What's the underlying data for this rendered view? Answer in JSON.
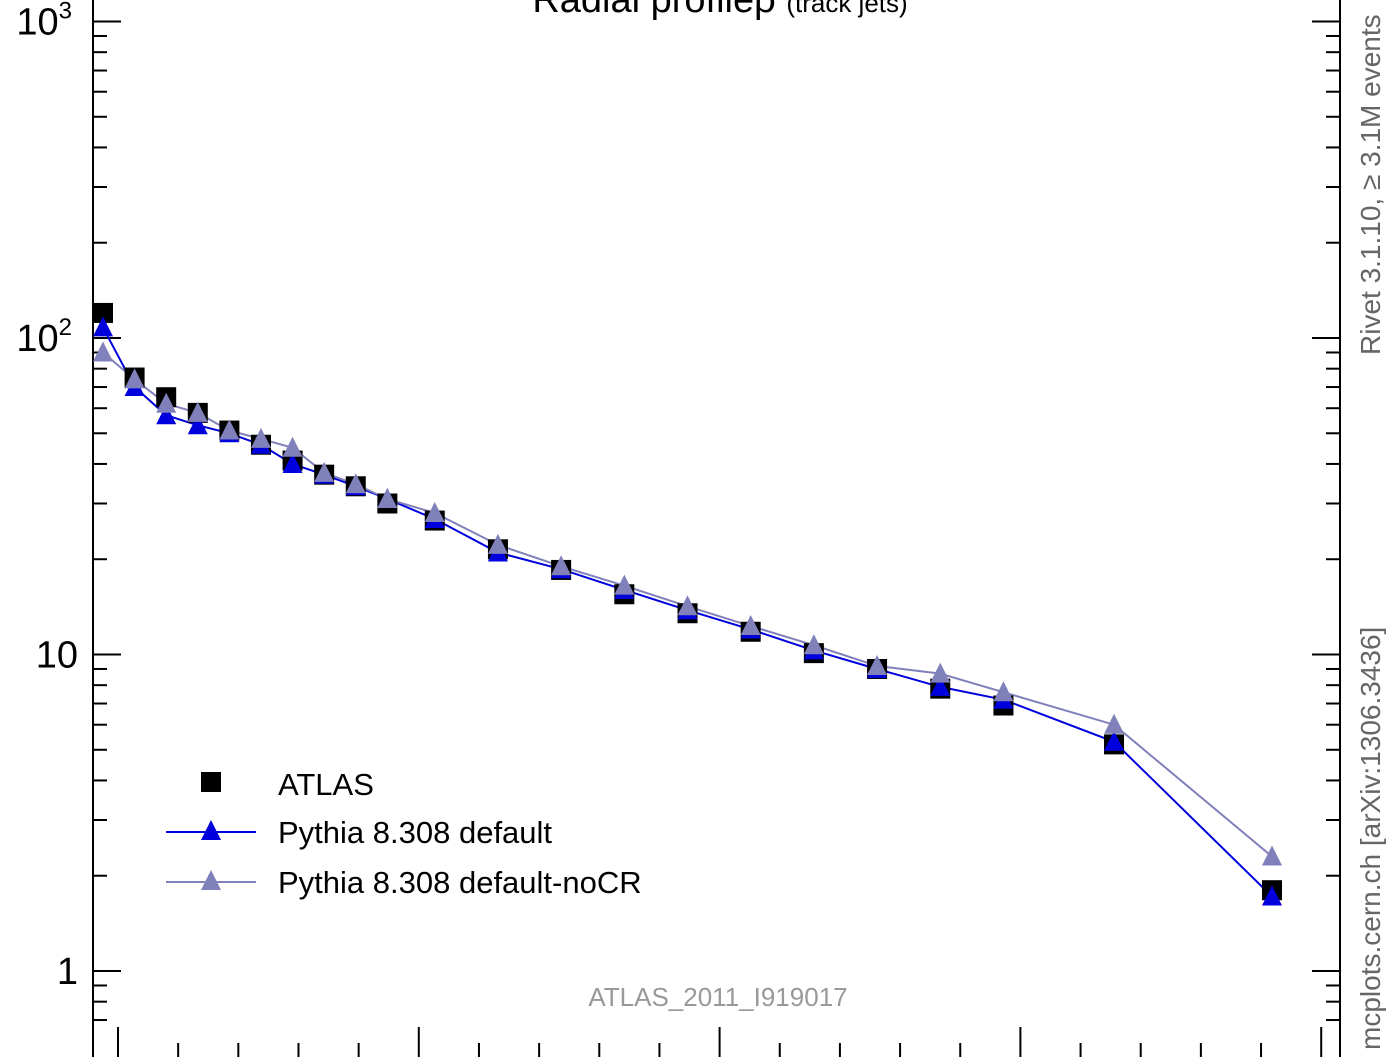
{
  "chart_data": {
    "type": "line",
    "title_main": "Radial profileρ",
    "title_sub": "(track jets)",
    "watermark": "ATLAS_2011_I919017",
    "side_label_top": "Rivet 3.1.10, ≥ 3.1M events",
    "side_label_bottom": "mcplots.cern.ch [arXiv:1306.3436]",
    "yscale": "log",
    "ylim": [
      0.7,
      1000
    ],
    "xlim": [
      0,
      0.6
    ],
    "y_ticks": [
      {
        "value": 1,
        "label": "1"
      },
      {
        "value": 10,
        "label": "10"
      },
      {
        "value": 100,
        "base": "10",
        "exp": "2"
      },
      {
        "value": 1000,
        "base": "10",
        "exp": "3"
      }
    ],
    "x": [
      0.005,
      0.015,
      0.025,
      0.035,
      0.045,
      0.055,
      0.065,
      0.075,
      0.085,
      0.095,
      0.11,
      0.13,
      0.15,
      0.17,
      0.19,
      0.21,
      0.23,
      0.25,
      0.27,
      0.29,
      0.325,
      0.375
    ],
    "series": [
      {
        "name": "ATLAS",
        "marker": "square",
        "color": "#000000",
        "values": [
          120,
          75,
          65,
          58,
          51,
          46,
          41,
          37,
          34,
          30,
          26.5,
          21.5,
          18.5,
          15.5,
          13.5,
          11.8,
          10.1,
          9.0,
          7.8,
          6.9,
          5.2,
          1.8
        ]
      },
      {
        "name": "Pythia 8.308 default",
        "marker": "triangle",
        "color": "#0000dd",
        "values": [
          108,
          70,
          57,
          53,
          50,
          46,
          40,
          37,
          34,
          31,
          26.8,
          21,
          18.6,
          16,
          13.8,
          12,
          10.3,
          9.0,
          7.9,
          7.2,
          5.3,
          1.72
        ]
      },
      {
        "name": "Pythia 8.308 default-noCR",
        "marker": "triangle",
        "color": "#8080bb",
        "values": [
          90,
          74,
          62,
          58,
          51,
          48,
          45,
          37.5,
          34.5,
          31,
          28,
          22.2,
          19,
          16.5,
          14.2,
          12.3,
          10.7,
          9.2,
          8.7,
          7.6,
          6.0,
          2.3
        ]
      }
    ],
    "legend_position": "bottom-left",
    "grid": false
  }
}
